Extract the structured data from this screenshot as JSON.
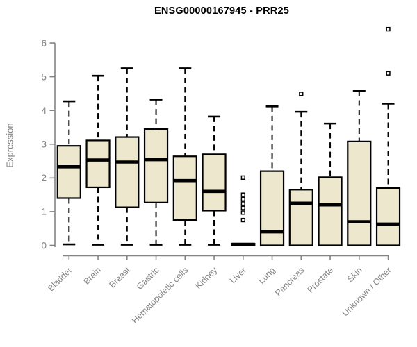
{
  "header": {
    "title": "ENSG00000167945 - PRR25"
  },
  "chart_data": {
    "type": "boxplot",
    "title": "ENSG00000167945 - PRR25",
    "ylabel": "Expression",
    "xlabel": "",
    "ylim": [
      0,
      6.55
    ],
    "yticks": [
      0,
      1,
      2,
      3,
      4,
      5,
      6
    ],
    "grid": false,
    "legend": "none",
    "categories": [
      "Bladder",
      "Brain",
      "Breast",
      "Gastric",
      "Hematopoietic cells",
      "Kidney",
      "Liver",
      "Lung",
      "Pancreas",
      "Prostate",
      "Skin",
      "Unknown / Other"
    ],
    "series": [
      {
        "name": "Bladder",
        "whisker_low": 0.03,
        "q1": 1.4,
        "median": 2.33,
        "q3": 2.95,
        "whisker_high": 4.27,
        "outliers": []
      },
      {
        "name": "Brain",
        "whisker_low": 0.02,
        "q1": 1.72,
        "median": 2.53,
        "q3": 3.11,
        "whisker_high": 5.03,
        "outliers": []
      },
      {
        "name": "Breast",
        "whisker_low": 0.02,
        "q1": 1.13,
        "median": 2.47,
        "q3": 3.21,
        "whisker_high": 5.25,
        "outliers": []
      },
      {
        "name": "Gastric",
        "whisker_low": 0.02,
        "q1": 1.27,
        "median": 2.54,
        "q3": 3.45,
        "whisker_high": 4.32,
        "outliers": []
      },
      {
        "name": "Hematopoietic cells",
        "whisker_low": 0.02,
        "q1": 0.75,
        "median": 1.92,
        "q3": 2.64,
        "whisker_high": 5.25,
        "outliers": []
      },
      {
        "name": "Kidney",
        "whisker_low": 0.02,
        "q1": 1.03,
        "median": 1.6,
        "q3": 2.7,
        "whisker_high": 3.82,
        "outliers": []
      },
      {
        "name": "Liver",
        "whisker_low": 0.0,
        "q1": 0.0,
        "median": 0.03,
        "q3": 0.05,
        "whisker_high": 0.07,
        "outliers": [
          0.75,
          0.97,
          1.11,
          1.24,
          1.37,
          1.5,
          2.01
        ]
      },
      {
        "name": "Lung",
        "whisker_low": 0.0,
        "q1": 0.0,
        "median": 0.4,
        "q3": 2.2,
        "whisker_high": 4.12,
        "outliers": []
      },
      {
        "name": "Pancreas",
        "whisker_low": 0.0,
        "q1": 0.0,
        "median": 1.25,
        "q3": 1.65,
        "whisker_high": 3.96,
        "outliers": [
          4.49
        ]
      },
      {
        "name": "Prostate",
        "whisker_low": 0.0,
        "q1": 0.0,
        "median": 1.2,
        "q3": 2.02,
        "whisker_high": 3.61,
        "outliers": []
      },
      {
        "name": "Skin",
        "whisker_low": 0.0,
        "q1": 0.0,
        "median": 0.7,
        "q3": 3.08,
        "whisker_high": 4.58,
        "outliers": []
      },
      {
        "name": "Unknown / Other",
        "whisker_low": 0.0,
        "q1": 0.0,
        "median": 0.63,
        "q3": 1.7,
        "whisker_high": 4.2,
        "outliers": [
          5.1,
          6.41
        ]
      }
    ],
    "colors": {
      "box_fill": "#EDE8CD",
      "box_stroke": "#000000",
      "median": "#000000",
      "whisker": "#000000",
      "outlier_stroke": "#000000",
      "outlier_fill": "#FFFFFF",
      "axis": "#848484",
      "tick_label": "#848484",
      "title": "#000000",
      "background": "#FFFFFF"
    }
  }
}
